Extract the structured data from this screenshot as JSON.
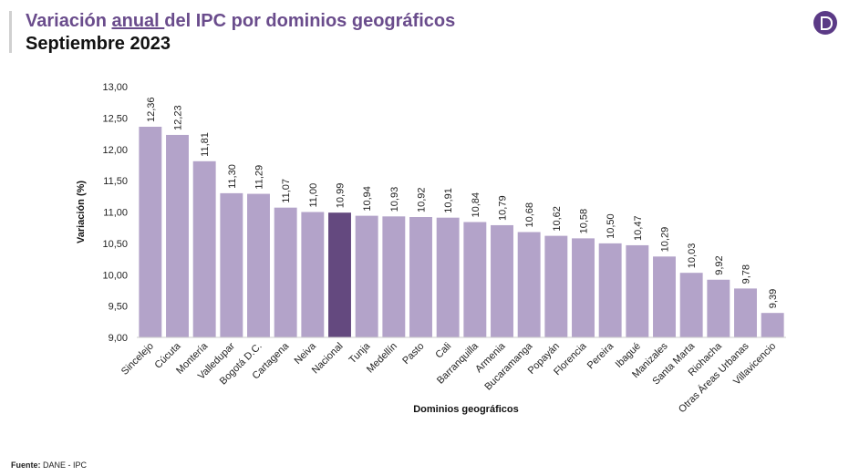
{
  "header": {
    "title_before": "Variación ",
    "title_underlined": "anual ",
    "title_after": "del IPC por dominios geográficos",
    "subtitle": "Septiembre 2023"
  },
  "logo": {
    "icon": "dane-logo-icon",
    "color": "#5b3a86"
  },
  "footer": {
    "source_label": "Fuente:",
    "source_text": " DANE - IPC"
  },
  "colors": {
    "bar": "#b3a3c9",
    "highlight_bar": "#64497f",
    "title": "#6a4c8c"
  },
  "chart_data": {
    "type": "bar",
    "xlabel": "Dominios geográficos",
    "ylabel": "Variación (%)",
    "ylim": [
      9.0,
      13.0
    ],
    "yticks": [
      "9,00",
      "9,50",
      "10,00",
      "10,50",
      "11,00",
      "11,50",
      "12,00",
      "12,50",
      "13,00"
    ],
    "ytick_values": [
      9.0,
      9.5,
      10.0,
      10.5,
      11.0,
      11.5,
      12.0,
      12.5,
      13.0
    ],
    "highlight": "Nacional",
    "categories": [
      "Sincelejo",
      "Cúcuta",
      "Montería",
      "Valledupar",
      "Bogotá D.C.",
      "Cartagena",
      "Neiva",
      "Nacional",
      "Tunja",
      "Medellín",
      "Pasto",
      "Cali",
      "Barranquilla",
      "Armenia",
      "Bucaramanga",
      "Popayán",
      "Florencia",
      "Pereira",
      "Ibagué",
      "Manizales",
      "Santa Marta",
      "Riohacha",
      "Otras Áreas Urbanas",
      "Villavicencio"
    ],
    "values": [
      12.36,
      12.23,
      11.81,
      11.3,
      11.29,
      11.07,
      11.0,
      10.99,
      10.94,
      10.93,
      10.92,
      10.91,
      10.84,
      10.79,
      10.68,
      10.62,
      10.58,
      10.5,
      10.47,
      10.29,
      10.03,
      9.92,
      9.78,
      9.39
    ],
    "value_labels": [
      "12,36",
      "12,23",
      "11,81",
      "11,30",
      "11,29",
      "11,07",
      "11,00",
      "10,99",
      "10,94",
      "10,93",
      "10,92",
      "10,91",
      "10,84",
      "10,79",
      "10,68",
      "10,62",
      "10,58",
      "10,50",
      "10,47",
      "10,29",
      "10,03",
      "9,92",
      "9,78",
      "9,39"
    ],
    "grid": false,
    "legend": "none"
  }
}
